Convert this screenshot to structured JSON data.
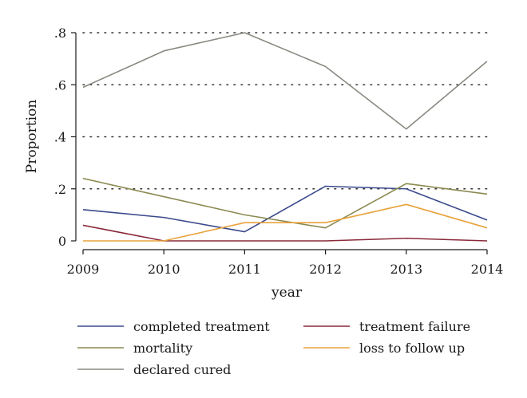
{
  "chart_data": {
    "type": "line",
    "xlabel": "year",
    "ylabel": "Proportion",
    "x": [
      2009,
      2010,
      2011,
      2012,
      2013,
      2014
    ],
    "x_tick_labels": [
      "2009",
      "2010",
      "2011",
      "2012",
      "2013",
      "2014"
    ],
    "y_ticks": [
      0,
      0.2,
      0.4,
      0.6,
      0.8
    ],
    "y_tick_labels": [
      "0",
      ".2",
      ".4",
      ".6",
      ".8"
    ],
    "ylim": [
      0,
      0.8
    ],
    "xlim": [
      2009,
      2014
    ],
    "grid": "horizontal dotted",
    "legend_placement": "bottom",
    "series": [
      {
        "name": "completed treatment",
        "color": "#3b4a8c",
        "values": [
          0.12,
          0.09,
          0.035,
          0.21,
          0.2,
          0.08
        ]
      },
      {
        "name": "treatment failure",
        "color": "#8b2a3a",
        "values": [
          0.06,
          0.0,
          0.0,
          0.0,
          0.01,
          0.0
        ]
      },
      {
        "name": "mortality",
        "color": "#8c8a52",
        "values": [
          0.24,
          0.17,
          0.1,
          0.05,
          0.22,
          0.18
        ]
      },
      {
        "name": "loss to follow up",
        "color": "#e8a23c",
        "values": [
          0.0,
          0.0,
          0.07,
          0.07,
          0.14,
          0.05
        ]
      },
      {
        "name": "declared cured",
        "color": "#8a8a82",
        "values": [
          0.59,
          0.73,
          0.8,
          0.67,
          0.43,
          0.69
        ]
      }
    ]
  }
}
